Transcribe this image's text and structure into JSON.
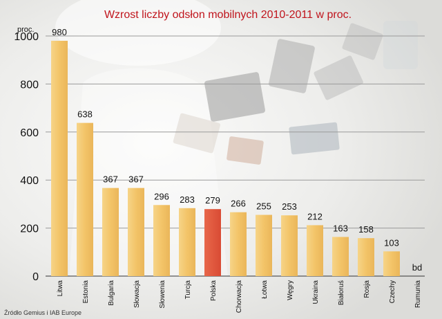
{
  "chart_data": {
    "type": "bar",
    "title": "Wzrost liczby odsłon mobilnych 2010-2011 w proc.",
    "ylabel": "proc.",
    "xlabel": "",
    "ylim": [
      0,
      1000
    ],
    "yticks": [
      0,
      200,
      400,
      600,
      800,
      1000
    ],
    "grid": true,
    "categories": [
      "Litwa",
      "Estonia",
      "Bulgaria",
      "Słowacja",
      "Słowenia",
      "Turcja",
      "Polska",
      "Chorwacja",
      "Łotwa",
      "Węgry",
      "Ukraina",
      "Białoruś",
      "Rosja",
      "Czechy",
      "Rumunia"
    ],
    "values": [
      980,
      638,
      367,
      367,
      296,
      283,
      279,
      266,
      255,
      253,
      212,
      163,
      158,
      103,
      null
    ],
    "value_labels": [
      "980",
      "638",
      "367",
      "367",
      "296",
      "283",
      "279",
      "266",
      "255",
      "253",
      "212",
      "163",
      "158",
      "103",
      "bd"
    ],
    "highlight_category": "Polska",
    "colors": {
      "bar": "#f2c569",
      "highlight": "#e0553c",
      "title": "#c0141c",
      "grid": "#9a9a9a"
    }
  },
  "source": "Źródło Gemius i IAB Europe"
}
